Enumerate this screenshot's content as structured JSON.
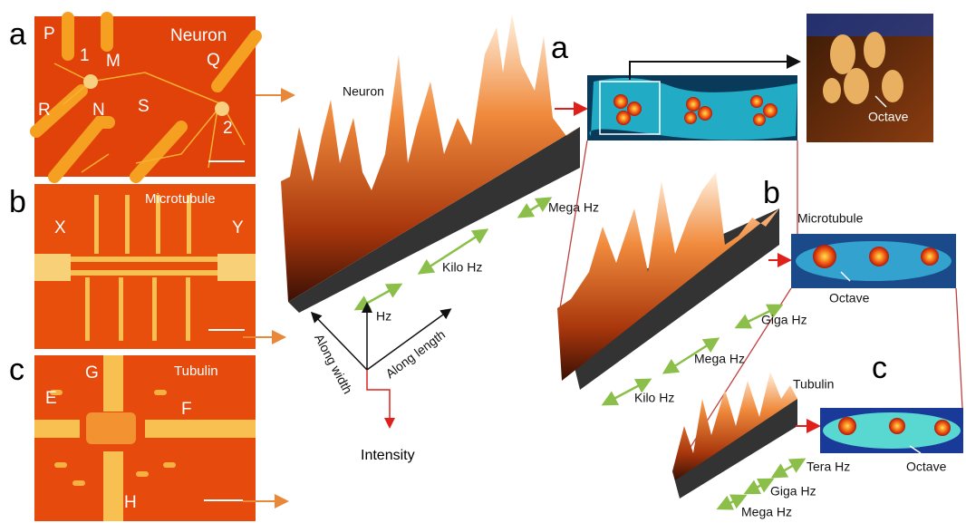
{
  "left_panels": [
    {
      "label": "a",
      "title": "Neuron",
      "markers": [
        "P",
        "1",
        "M",
        "Q",
        "R",
        "N",
        "S",
        "2"
      ]
    },
    {
      "label": "b",
      "title": "Microtubule",
      "markers": [
        "X",
        "Y"
      ]
    },
    {
      "label": "c",
      "title": "Tubulin",
      "markers": [
        "G",
        "E",
        "F",
        "H"
      ]
    }
  ],
  "neuron_landscape": {
    "title": "Neuron",
    "scales": [
      "Mega Hz",
      "Kilo Hz"
    ]
  },
  "axes_legend": {
    "up": "Hz",
    "width": "Along width",
    "length": "Along length",
    "down": "Intensity"
  },
  "right_panels": [
    {
      "label": "a",
      "octave": "Octave"
    },
    {
      "label": "b",
      "title": "Microtubule",
      "octave": "Octave",
      "scales": [
        "Giga Hz",
        "Mega Hz",
        "Kilo Hz"
      ]
    },
    {
      "label": "c",
      "title": "Tubulin",
      "octave": "Octave",
      "scales": [
        "Tera Hz",
        "Giga Hz",
        "Mega Hz"
      ]
    }
  ]
}
